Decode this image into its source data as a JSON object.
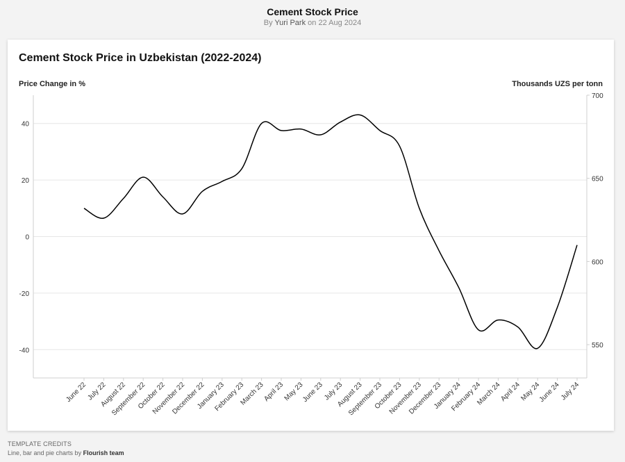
{
  "header": {
    "title": "Cement Stock Price",
    "by_prefix": "By",
    "author": "Yuri Park",
    "on_prefix": "on",
    "date": "22 Aug 2024"
  },
  "footer": {
    "credits_label": "Template credits",
    "credits_text": "Line, bar and pie charts by",
    "credits_team": "Flourish team"
  },
  "chart_data": {
    "type": "line",
    "title": "Cement Stock Price in Uzbekistan (2022-2024)",
    "ylabel": "Price Change in %",
    "y2label": "Thousands UZS per tonn",
    "ylim": [
      -50,
      50
    ],
    "y_ticks": [
      40,
      20,
      0,
      -20,
      -40
    ],
    "y2lim": [
      530,
      700
    ],
    "y2_ticks": [
      700,
      650,
      600,
      550
    ],
    "grid": true,
    "categories": [
      "June 22",
      "July 22",
      "August 22",
      "September 22",
      "October 22",
      "November 22",
      "December 22",
      "January 23",
      "February 23",
      "March 23",
      "April 23",
      "May 23",
      "June 23",
      "July 23",
      "August 23",
      "September 23",
      "October 23",
      "November 23",
      "December 23",
      "January 24",
      "February 24",
      "March 24",
      "April 24",
      "May 24",
      "June 24",
      "July 24"
    ],
    "series": [
      {
        "color": "#000000",
        "values": [
          10,
          6.5,
          13.5,
          21,
          14,
          8,
          16,
          19.5,
          24,
          40,
          37.5,
          38,
          36,
          40.5,
          43,
          37.5,
          32,
          10,
          -5,
          -18,
          -33,
          -29.5,
          -32,
          -39.5,
          -25,
          -3
        ]
      }
    ]
  }
}
